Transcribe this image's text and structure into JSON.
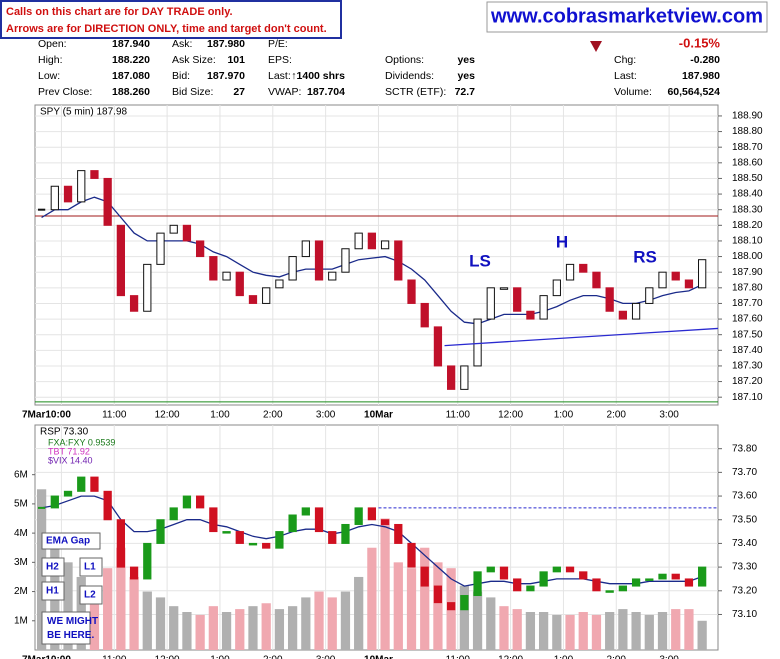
{
  "header": {
    "notice": [
      "Calls on this chart are for DAY TRADE only.",
      "Arrows are for DIRECTION ONLY, time and target don't count."
    ],
    "site": "www.cobrasmarketview.com"
  },
  "quote": {
    "rows": [
      [
        {
          "label": "Open:",
          "value": "187.940"
        },
        {
          "label": "Ask:",
          "value": "187.980"
        },
        {
          "label": "P/E:"
        },
        null,
        {
          "value": "-0.15%"
        }
      ],
      [
        {
          "label": "High:",
          "value": "188.220"
        },
        {
          "label": "Ask Size:",
          "value": "101"
        },
        {
          "label": "EPS:"
        },
        {
          "label": "Options:",
          "value": "yes"
        },
        {
          "label": "Chg:",
          "value": "-0.280"
        }
      ],
      [
        {
          "label": "Low:",
          "value": "187.080"
        },
        {
          "label": "Bid:",
          "value": "187.970"
        },
        {
          "label": "Last:",
          "value": "↑1400 shrs"
        },
        {
          "label": "Dividends:",
          "value": "yes"
        },
        {
          "label": "Last:",
          "value": "187.980"
        }
      ],
      [
        {
          "label": "Prev Close:",
          "value": "188.260"
        },
        {
          "label": "Bid Size:",
          "value": "27"
        },
        {
          "label": "VWAP:",
          "value": "187.704"
        },
        {
          "label": "SCTR (ETF):",
          "value": "72.7"
        },
        {
          "label": "Volume:",
          "value": "60,564,524"
        }
      ]
    ]
  },
  "chart_data": [
    {
      "type": "candlestick",
      "label": "SPY (5 min) 187.98",
      "color_up": "#111111",
      "color_down": "#c0102a",
      "grid": true,
      "xlim": [
        0,
        51.7
      ],
      "xticks": [
        {
          "value": 2,
          "label": "7Mar10:00"
        },
        {
          "value": 6,
          "label": "11:00"
        },
        {
          "value": 10,
          "label": "12:00"
        },
        {
          "value": 14,
          "label": "1:00"
        },
        {
          "value": 18,
          "label": "2:00"
        },
        {
          "value": 22,
          "label": "3:00"
        },
        {
          "value": 26,
          "label": "10Mar"
        },
        {
          "value": 32,
          "label": "11:00"
        },
        {
          "value": 36,
          "label": "12:00"
        },
        {
          "value": 40,
          "label": "1:00"
        },
        {
          "value": 44,
          "label": "2:00"
        },
        {
          "value": 48,
          "label": "3:00"
        }
      ],
      "ylim": [
        187.05,
        188.97
      ],
      "yticks": [
        {
          "value": 187.1,
          "label": "187.10"
        },
        {
          "value": 187.2,
          "label": "187.20"
        },
        {
          "value": 187.3,
          "label": "187.30"
        },
        {
          "value": 187.4,
          "label": "187.40"
        },
        {
          "value": 187.5,
          "label": "187.50"
        },
        {
          "value": 187.6,
          "label": "187.60"
        },
        {
          "value": 187.7,
          "label": "187.70"
        },
        {
          "value": 187.8,
          "label": "187.80"
        },
        {
          "value": 187.9,
          "label": "187.90"
        },
        {
          "value": 188.0,
          "label": "188.00"
        },
        {
          "value": 188.1,
          "label": "188.10"
        },
        {
          "value": 188.2,
          "label": "188.20"
        },
        {
          "value": 188.3,
          "label": "188.30"
        },
        {
          "value": 188.4,
          "label": "188.40"
        },
        {
          "value": 188.5,
          "label": "188.50"
        },
        {
          "value": 188.6,
          "label": "188.60"
        },
        {
          "value": 188.7,
          "label": "188.70"
        },
        {
          "value": 188.8,
          "label": "188.80"
        },
        {
          "value": 188.9,
          "label": "188.90"
        }
      ],
      "values": [
        188.3,
        188.45,
        188.35,
        188.55,
        188.5,
        188.2,
        187.75,
        187.65,
        187.95,
        188.15,
        188.2,
        188.1,
        188.0,
        187.85,
        187.9,
        187.75,
        187.7,
        187.8,
        187.85,
        188.0,
        188.1,
        187.85,
        187.9,
        188.05,
        188.15,
        188.05,
        188.1,
        187.85,
        187.7,
        187.55,
        187.3,
        187.15,
        187.3,
        187.6,
        187.8,
        187.8,
        187.65,
        187.6,
        187.75,
        187.85,
        187.95,
        187.9,
        187.8,
        187.65,
        187.6,
        187.7,
        187.8,
        187.9,
        187.85,
        187.8,
        187.98
      ],
      "ema": {
        "color": "#1a2a8a",
        "values": [
          188.25,
          188.3,
          188.3,
          188.35,
          188.38,
          188.35,
          188.25,
          188.15,
          188.1,
          188.1,
          188.1,
          188.1,
          188.08,
          188.03,
          188.0,
          187.95,
          187.9,
          187.88,
          187.87,
          187.9,
          187.92,
          187.92,
          187.92,
          187.95,
          187.98,
          187.99,
          188.0,
          187.97,
          187.92,
          187.85,
          187.75,
          187.65,
          187.58,
          187.57,
          187.6,
          187.63,
          187.63,
          187.63,
          187.65,
          187.68,
          187.72,
          187.75,
          187.75,
          187.73,
          187.7,
          187.7,
          187.72,
          187.75,
          187.77,
          187.78,
          187.82
        ]
      },
      "reference_lines": [
        {
          "value": 188.26,
          "color": "#a01818"
        },
        {
          "value": 187.07,
          "color": "#1a8a1a"
        }
      ],
      "trendline": {
        "x": [
          31,
          51.7
        ],
        "y": [
          187.43,
          187.54
        ],
        "color": "#2a2ad0"
      },
      "annotations": [
        "LS",
        "H",
        "RS"
      ]
    },
    {
      "type": "candlestick",
      "label": "RSP 73.30",
      "color_up": "#1a9a1a",
      "color_down": "#d01020",
      "grid": true,
      "legend": [
        {
          "text": "FXA:FXY 0.9539",
          "color": "#1a7a1a"
        },
        {
          "text": "TBT 71.92",
          "color": "#d030c0"
        },
        {
          "text": "$VIX 14.40",
          "color": "#7020b0"
        }
      ],
      "xlim": [
        0,
        51.7
      ],
      "ylim": [
        72.95,
        73.9
      ],
      "yticks": [
        {
          "value": 73.1,
          "label": "73.10"
        },
        {
          "value": 73.2,
          "label": "73.20"
        },
        {
          "value": 73.3,
          "label": "73.30"
        },
        {
          "value": 73.4,
          "label": "73.40"
        },
        {
          "value": 73.5,
          "label": "73.50"
        },
        {
          "value": 73.6,
          "label": "73.60"
        },
        {
          "value": 73.7,
          "label": "73.70"
        },
        {
          "value": 73.8,
          "label": "73.80"
        }
      ],
      "values": [
        73.55,
        73.6,
        73.62,
        73.68,
        73.62,
        73.5,
        73.3,
        73.25,
        73.4,
        73.5,
        73.55,
        73.6,
        73.55,
        73.45,
        73.45,
        73.4,
        73.4,
        73.38,
        73.45,
        73.52,
        73.55,
        73.45,
        73.4,
        73.48,
        73.55,
        73.5,
        73.48,
        73.4,
        73.3,
        73.22,
        73.15,
        73.12,
        73.18,
        73.28,
        73.3,
        73.25,
        73.2,
        73.22,
        73.28,
        73.3,
        73.28,
        73.25,
        73.2,
        73.2,
        73.22,
        73.25,
        73.25,
        73.27,
        73.25,
        73.22,
        73.3
      ],
      "ema": {
        "color": "#1a2a8a",
        "values": [
          73.55,
          73.56,
          73.58,
          73.6,
          73.6,
          73.58,
          73.5,
          73.45,
          73.45,
          73.46,
          73.48,
          73.5,
          73.5,
          73.48,
          73.47,
          73.45,
          73.43,
          73.42,
          73.43,
          73.45,
          73.46,
          73.46,
          73.44,
          73.45,
          73.47,
          73.48,
          73.47,
          73.45,
          73.4,
          73.35,
          73.3,
          73.25,
          73.22,
          73.23,
          73.24,
          73.24,
          73.23,
          73.23,
          73.24,
          73.25,
          73.25,
          73.25,
          73.24,
          73.23,
          73.23,
          73.23,
          73.24,
          73.24,
          73.24,
          73.24,
          73.26
        ]
      },
      "dashed_line": {
        "value": 73.55,
        "from": 26,
        "color": "#2a2ad0"
      },
      "volume": {
        "color": "#b0b0b0",
        "color_down": "#f0a8b0",
        "lim": [
          0,
          7.7
        ],
        "ticks": [
          {
            "value": 1,
            "label": "1M"
          },
          {
            "value": 2,
            "label": "2M"
          },
          {
            "value": 3,
            "label": "3M"
          },
          {
            "value": 4,
            "label": "4M"
          },
          {
            "value": 5,
            "label": "5M"
          },
          {
            "value": 6,
            "label": "6M"
          }
        ],
        "values": [
          5.5,
          3.5,
          3,
          2.5,
          2.2,
          2.8,
          3.5,
          2.5,
          2.0,
          1.8,
          1.5,
          1.3,
          1.2,
          1.5,
          1.3,
          1.4,
          1.5,
          1.6,
          1.4,
          1.5,
          1.8,
          2.0,
          1.8,
          2.0,
          2.5,
          3.5,
          4.5,
          3.0,
          2.8,
          3.5,
          3.0,
          2.8,
          2.2,
          2.0,
          1.8,
          1.5,
          1.4,
          1.3,
          1.3,
          1.2,
          1.2,
          1.3,
          1.2,
          1.3,
          1.4,
          1.3,
          1.2,
          1.3,
          1.4,
          1.4,
          1.0
        ]
      },
      "notes": [
        "EMA Gap",
        "H2",
        "L1",
        "H1",
        "L2",
        "WE MIGHT BE HERE."
      ]
    }
  ]
}
